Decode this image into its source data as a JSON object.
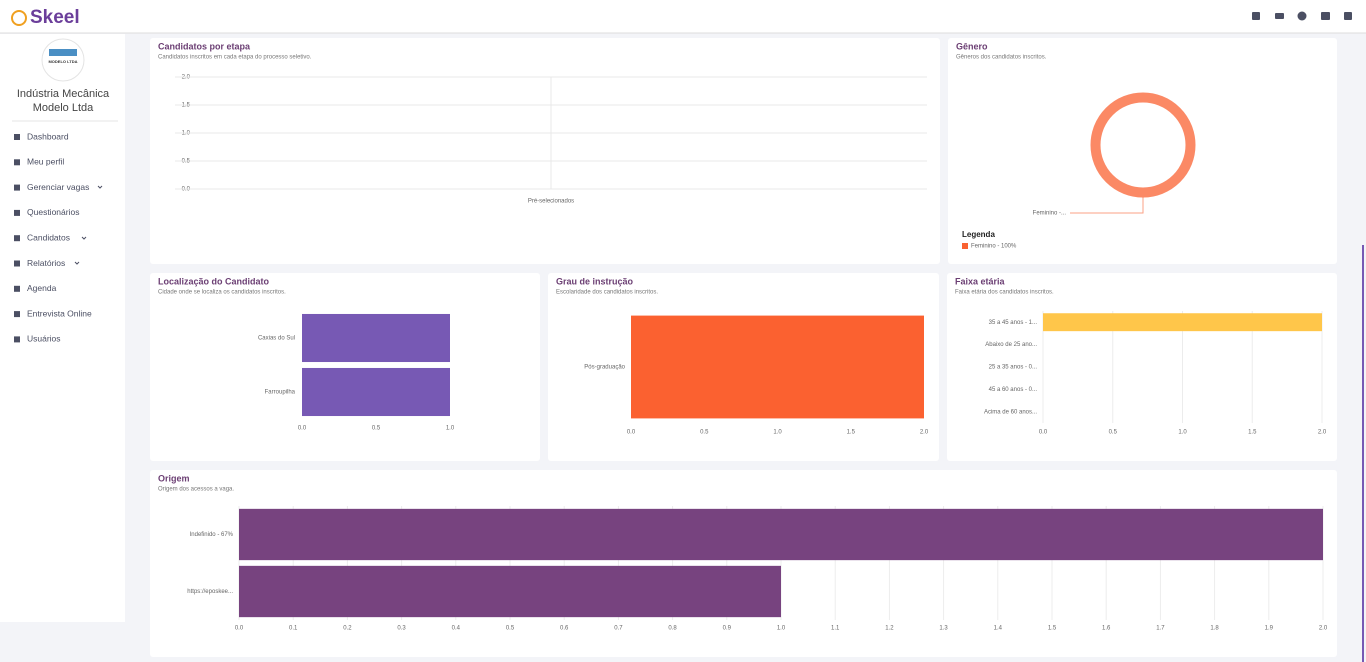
{
  "header": {
    "brand": "Skeel"
  },
  "sidebar": {
    "logo_text": "MODELO LTDA",
    "company": [
      "Indústria Mecânica",
      "Modelo Ltda"
    ],
    "menu": [
      "Dashboard",
      "Meu perfil",
      "Gerenciar vagas",
      "Questionários",
      "Candidatos",
      "Relatórios",
      "Agenda",
      "Entrevista Online",
      "Usuários"
    ]
  },
  "panels": [
    {
      "type": "bar",
      "title": "Candidatos por etapa",
      "subtitle": "Candidatos inscritos em cada etapa do processo seletivo.",
      "categories": [
        "Pré-selecionados"
      ],
      "values": [
        0
      ],
      "color": "#7759b4",
      "ylim": [
        0,
        2
      ],
      "yticks": [
        {
          "value": 0,
          "label": "0.0"
        },
        0.5,
        {
          "value": 1,
          "label": "1.0"
        },
        1.5,
        {
          "value": 2,
          "label": "2.0"
        }
      ],
      "grid": true
    },
    {
      "type": "donut",
      "title": "Gênero",
      "subtitle": "Gêneros dos candidatos inscritos.",
      "categories": [
        "Feminino"
      ],
      "values": [
        100
      ],
      "slice_labels": [
        "Feminino -..."
      ],
      "color": "#f96232",
      "legend_title": "Legenda",
      "legend_labels": [
        "Feminino - 100%"
      ]
    },
    {
      "type": "hbar",
      "title": "Localização do Candidato",
      "subtitle": "Cidade onde se localiza os candidatos inscritos.",
      "categories": [
        "Caxias do Sul",
        "Farroupilha"
      ],
      "values": [
        1,
        1
      ],
      "color": "#7759b4",
      "xlim": [
        0,
        1
      ],
      "xticks": [
        {
          "value": 0,
          "label": "0.0"
        },
        0.5,
        {
          "value": 1,
          "label": "1.0"
        }
      ],
      "grid": false
    },
    {
      "type": "hbar",
      "title": "Grau de instrução",
      "subtitle": "Escolaridade dos candidatos inscritos.",
      "categories": [
        "Pós-graduação"
      ],
      "values": [
        2
      ],
      "color": "#fb6130",
      "xlim": [
        0,
        2
      ],
      "xticks": [
        {
          "value": 0,
          "label": "0.0"
        },
        0.5,
        {
          "value": 1,
          "label": "1.0"
        },
        1.5,
        {
          "value": 2,
          "label": "2.0"
        }
      ],
      "grid": false
    },
    {
      "type": "hbar",
      "title": "Faixa etária",
      "subtitle": "Faixa etária dos candidatos inscritos.",
      "categories": [
        "35 a 45 anos - 1...",
        "Abaixo de 25 ano...",
        "25 a 35 anos - 0...",
        "45 a 60 anos - 0...",
        "Acima de 60 anos..."
      ],
      "values": [
        2,
        0,
        0,
        0,
        0
      ],
      "color": "#ffc64a",
      "xlim": [
        0,
        2
      ],
      "xticks": [
        {
          "value": 0,
          "label": "0.0"
        },
        0.5,
        {
          "value": 1,
          "label": "1.0"
        },
        1.5,
        {
          "value": 2,
          "label": "2.0"
        }
      ],
      "grid": true
    },
    {
      "type": "hbar",
      "title": "Origem",
      "subtitle": "Origem dos acessos a vaga.",
      "categories": [
        "Indefinido - 67%",
        "https://eposkee..."
      ],
      "values": [
        2,
        1
      ],
      "color": "#77437f",
      "xlim": [
        0,
        2
      ],
      "xticks": [
        {
          "value": 0,
          "label": "0.0"
        },
        0.1,
        0.2,
        0.3,
        0.4,
        0.5,
        0.6,
        0.7,
        0.8,
        0.9,
        {
          "value": 1,
          "label": "1.0"
        },
        1.1,
        1.2,
        1.3,
        1.4,
        1.5,
        1.6,
        1.7,
        1.8,
        1.9,
        {
          "value": 2,
          "label": "2.0"
        }
      ],
      "grid": true
    }
  ]
}
